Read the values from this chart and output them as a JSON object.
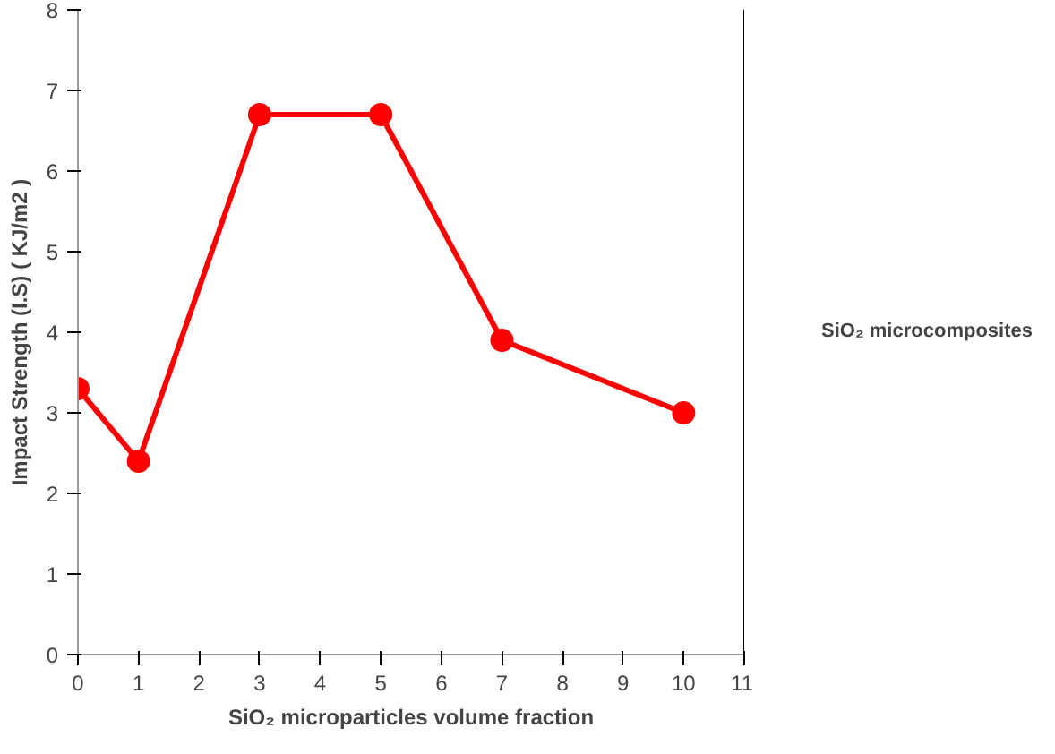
{
  "chart_data": {
    "type": "line",
    "xlabel": "SiO₂ microparticles volume fraction",
    "ylabel": "Impact Strength (I.S) ( KJ/m2 )",
    "x": [
      0,
      1,
      3,
      5,
      7,
      10
    ],
    "series": [
      {
        "name": "SiO₂ microcomposites",
        "color": "#ff0000",
        "values": [
          3.3,
          2.4,
          6.7,
          6.7,
          3.9,
          3.0
        ]
      }
    ],
    "xlim": [
      0,
      11
    ],
    "ylim": [
      0,
      8
    ],
    "xticks": [
      0,
      1,
      2,
      3,
      4,
      5,
      6,
      7,
      8,
      9,
      10,
      11
    ],
    "yticks": [
      0,
      1,
      2,
      3,
      4,
      5,
      6,
      7,
      8
    ],
    "grid": false,
    "legend": "right",
    "marker": "circle",
    "line_style": "solid"
  }
}
